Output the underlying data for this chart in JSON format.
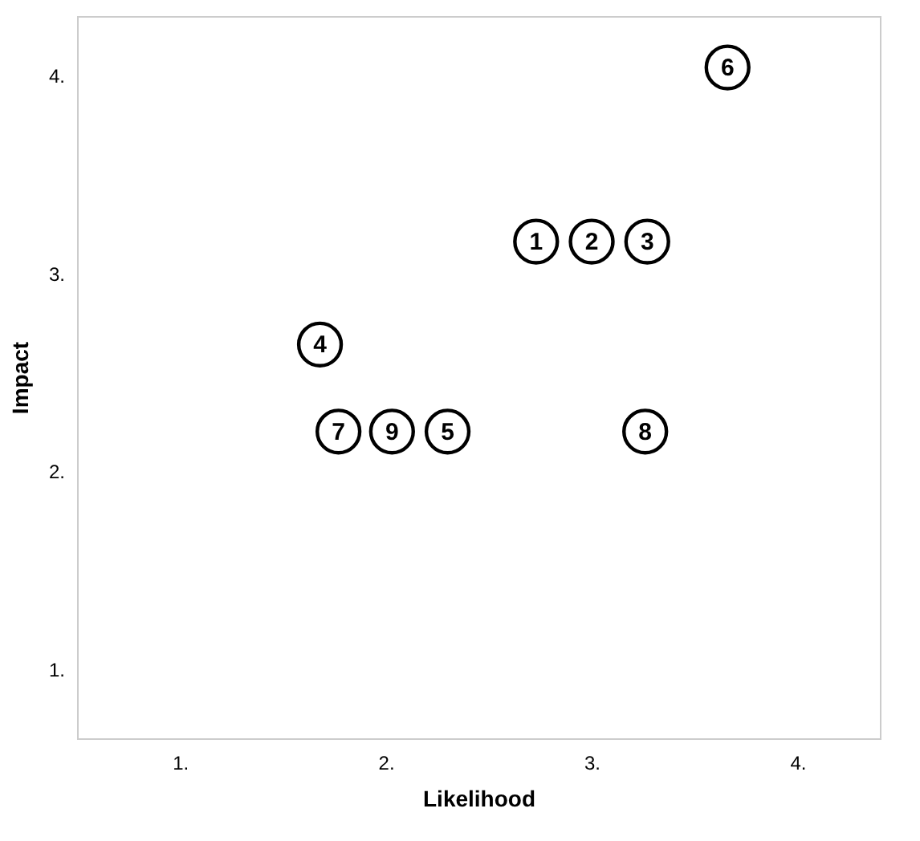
{
  "chart_data": {
    "type": "scatter",
    "xlabel": "Likelihood",
    "ylabel": "Impact",
    "x": [
      2.73,
      3.0,
      3.27,
      1.68,
      2.3,
      3.66,
      1.77,
      3.26,
      2.03
    ],
    "values": [
      3.16,
      3.16,
      3.16,
      2.64,
      2.2,
      4.04,
      2.2,
      2.2,
      2.2
    ],
    "annotations": [
      {
        "text": "1",
        "x": 2.73,
        "y": 3.16
      },
      {
        "text": "2",
        "x": 3.0,
        "y": 3.16
      },
      {
        "text": "3",
        "x": 3.27,
        "y": 3.16
      },
      {
        "text": "4",
        "x": 1.68,
        "y": 2.64
      },
      {
        "text": "5",
        "x": 2.3,
        "y": 2.2
      },
      {
        "text": "6",
        "x": 3.66,
        "y": 4.04
      },
      {
        "text": "7",
        "x": 1.77,
        "y": 2.2
      },
      {
        "text": "8",
        "x": 3.26,
        "y": 2.2
      },
      {
        "text": "9",
        "x": 2.03,
        "y": 2.2
      }
    ],
    "color": "#000000",
    "marker": "circle",
    "xlim": [
      0.5,
      4.4
    ],
    "ylim": [
      0.65,
      4.3
    ],
    "xticks": [
      {
        "value": 1,
        "label": "1."
      },
      {
        "value": 2,
        "label": "2."
      },
      {
        "value": 3,
        "label": "3."
      },
      {
        "value": 4,
        "label": "4."
      }
    ],
    "yticks": [
      {
        "value": 1,
        "label": "1."
      },
      {
        "value": 2,
        "label": "2."
      },
      {
        "value": 3,
        "label": "3."
      },
      {
        "value": 4,
        "label": "4."
      }
    ],
    "grid": false
  }
}
